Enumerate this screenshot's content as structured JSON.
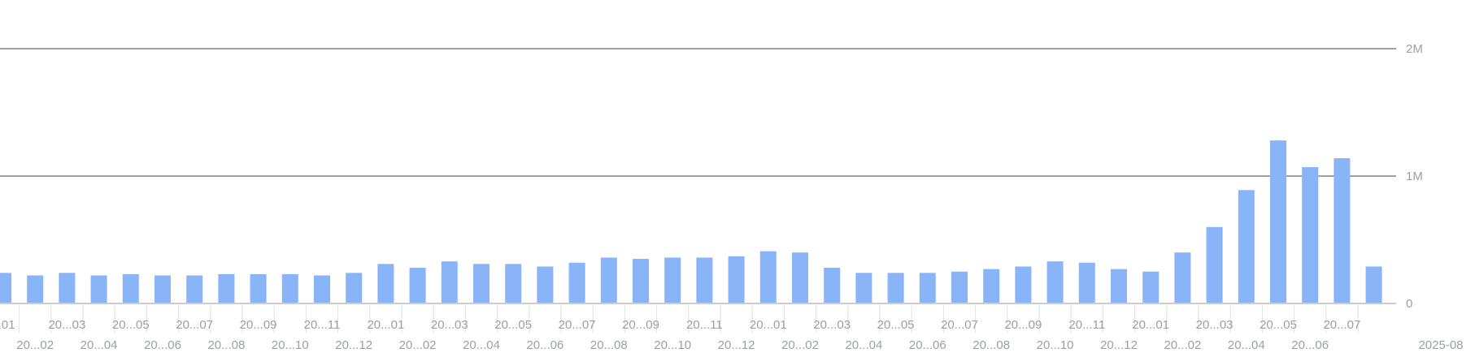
{
  "chart_data": {
    "type": "bar",
    "title": "",
    "xlabel": "",
    "ylabel": "",
    "ylim": [
      0,
      2000000
    ],
    "yticks": [
      {
        "value": 0,
        "label": "0"
      },
      {
        "value": 1000000,
        "label": "1M"
      },
      {
        "value": 2000000,
        "label": "2M"
      }
    ],
    "grid": "horizontal",
    "bar_color": "#8ab4f8",
    "grid_color": "#666666",
    "axis_color": "#cccccc",
    "tick_label_color": "#9aa0a6",
    "categories": [
      "...01",
      "20...02",
      "20...03",
      "20...04",
      "20...05",
      "20...06",
      "20...07",
      "20...08",
      "20...09",
      "20...10",
      "20...11",
      "20...12",
      "20...01",
      "20...02",
      "20...03",
      "20...04",
      "20...05",
      "20...06",
      "20...07",
      "20...08",
      "20...09",
      "20...10",
      "20...11",
      "20...12",
      "20...01",
      "20...02",
      "20...03",
      "20...04",
      "20...05",
      "20...06",
      "20...07",
      "20...08",
      "20...09",
      "20...10",
      "20...11",
      "20...12",
      "20...01",
      "20...02",
      "20...03",
      "20...04",
      "20...05",
      "20...06",
      "20...07",
      "2025-08"
    ],
    "values": [
      240000,
      220000,
      240000,
      220000,
      230000,
      220000,
      220000,
      230000,
      230000,
      230000,
      220000,
      240000,
      310000,
      280000,
      330000,
      310000,
      310000,
      290000,
      320000,
      360000,
      350000,
      360000,
      360000,
      370000,
      410000,
      400000,
      280000,
      240000,
      240000,
      240000,
      250000,
      270000,
      290000,
      330000,
      320000,
      270000,
      250000,
      400000,
      600000,
      890000,
      1280000,
      1070000,
      1140000,
      290000
    ]
  }
}
